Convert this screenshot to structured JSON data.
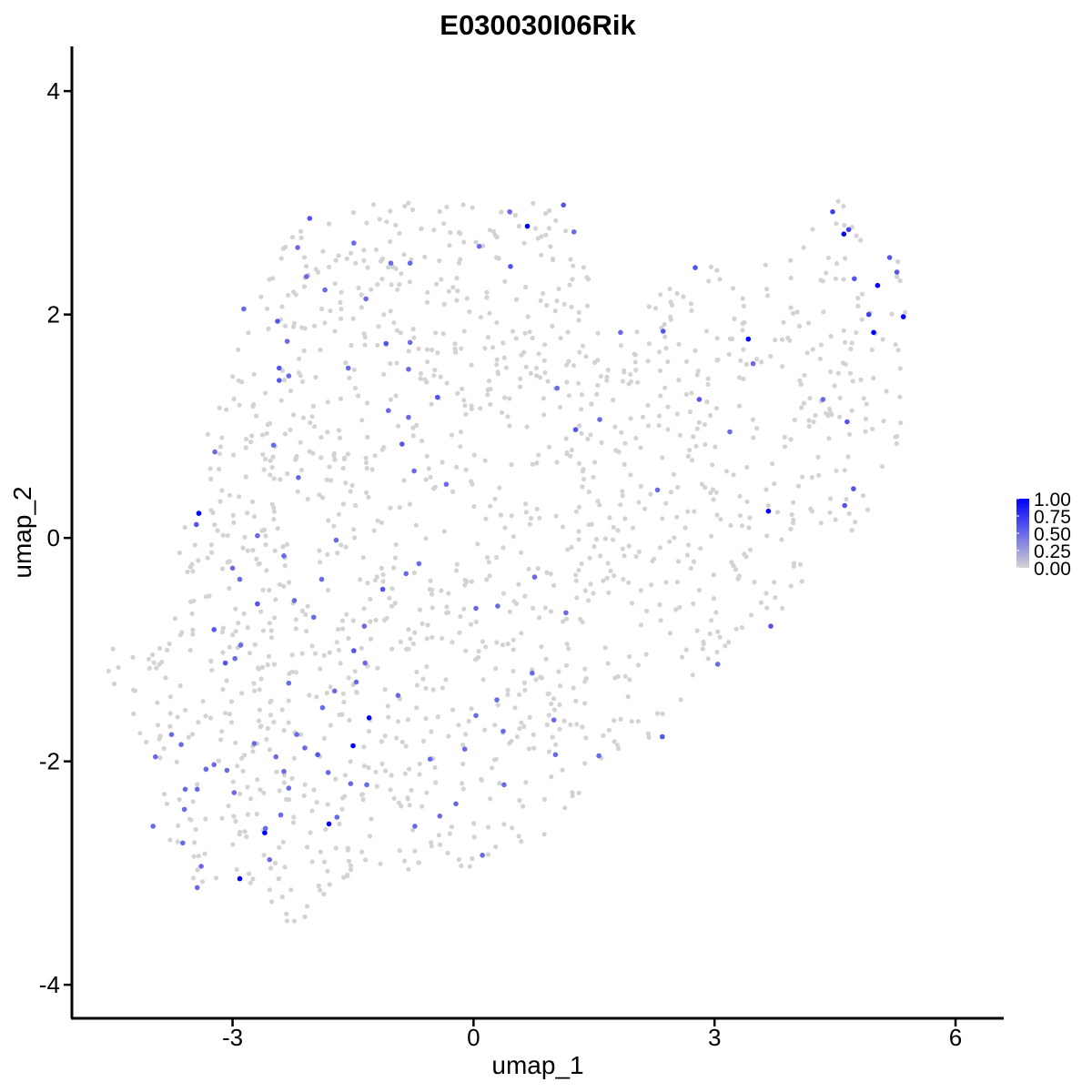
{
  "chart_data": {
    "type": "scatter",
    "title": "E030030I06Rik",
    "xlabel": "umap_1",
    "ylabel": "umap_2",
    "xlim": [
      -5.0,
      6.6
    ],
    "ylim": [
      -4.3,
      4.4
    ],
    "x_ticks": [
      -3,
      0,
      3,
      6
    ],
    "x_tick_labels": [
      "-3",
      "0",
      "3",
      "6"
    ],
    "y_ticks": [
      -4,
      -2,
      0,
      2,
      4
    ],
    "y_tick_labels": [
      "-4",
      "-2",
      "0",
      "2",
      "4"
    ],
    "grid": false,
    "legend": {
      "placement": "right",
      "type": "colorbar",
      "values": [
        1.0,
        0.75,
        0.5,
        0.25,
        0.0
      ],
      "labels": [
        "1.00",
        "0.75",
        "0.50",
        "0.25",
        "0.00"
      ],
      "low_color": "#d3d3d3",
      "high_color": "#0000ff"
    },
    "background_point_color": "#d3d3d3",
    "background_cell_count": 1500,
    "expressing_points": [
      {
        "x": 4.61,
        "y": 2.72,
        "v": 1.0
      },
      {
        "x": 5.03,
        "y": 2.26,
        "v": 1.0
      },
      {
        "x": 5.35,
        "y": 1.98,
        "v": 1.0
      },
      {
        "x": 4.98,
        "y": 1.84,
        "v": 1.0
      },
      {
        "x": 3.42,
        "y": 1.78,
        "v": 1.0
      },
      {
        "x": 0.67,
        "y": 2.79,
        "v": 1.0
      },
      {
        "x": 3.67,
        "y": 0.24,
        "v": 1.0
      },
      {
        "x": -3.42,
        "y": 0.22,
        "v": 1.0
      },
      {
        "x": -1.3,
        "y": -1.61,
        "v": 1.0
      },
      {
        "x": -1.5,
        "y": -1.86,
        "v": 1.0
      },
      {
        "x": -1.8,
        "y": -2.56,
        "v": 1.0
      },
      {
        "x": -2.6,
        "y": -2.64,
        "v": 1.0
      },
      {
        "x": -2.91,
        "y": -3.05,
        "v": 1.0
      },
      {
        "x": 4.47,
        "y": 2.92,
        "v": 0.7
      },
      {
        "x": 4.67,
        "y": 2.76,
        "v": 0.7
      },
      {
        "x": 5.18,
        "y": 2.51,
        "v": 0.6
      },
      {
        "x": 5.27,
        "y": 2.38,
        "v": 0.6
      },
      {
        "x": 4.92,
        "y": 2.0,
        "v": 0.7
      },
      {
        "x": 4.74,
        "y": 2.32,
        "v": 0.6
      },
      {
        "x": 4.65,
        "y": 1.04,
        "v": 0.6
      },
      {
        "x": 4.73,
        "y": 0.44,
        "v": 0.6
      },
      {
        "x": 4.35,
        "y": 1.24,
        "v": 0.5
      },
      {
        "x": 4.62,
        "y": 0.29,
        "v": 0.6
      },
      {
        "x": 2.76,
        "y": 2.42,
        "v": 0.6
      },
      {
        "x": 2.36,
        "y": 1.85,
        "v": 0.6
      },
      {
        "x": 1.83,
        "y": 1.84,
        "v": 0.5
      },
      {
        "x": 1.57,
        "y": 1.06,
        "v": 0.5
      },
      {
        "x": 2.81,
        "y": 1.24,
        "v": 0.6
      },
      {
        "x": 3.19,
        "y": 0.95,
        "v": 0.5
      },
      {
        "x": 3.48,
        "y": 1.56,
        "v": 0.5
      },
      {
        "x": 2.29,
        "y": 0.43,
        "v": 0.5
      },
      {
        "x": 3.7,
        "y": -0.79,
        "v": 0.6
      },
      {
        "x": 3.04,
        "y": -1.13,
        "v": 0.5
      },
      {
        "x": 2.35,
        "y": -1.78,
        "v": 0.6
      },
      {
        "x": 1.12,
        "y": 2.98,
        "v": 0.6
      },
      {
        "x": 1.25,
        "y": 2.74,
        "v": 0.5
      },
      {
        "x": 0.45,
        "y": 2.92,
        "v": 0.5
      },
      {
        "x": 0.46,
        "y": 2.43,
        "v": 0.6
      },
      {
        "x": 0.07,
        "y": 2.61,
        "v": 0.5
      },
      {
        "x": -0.79,
        "y": 2.46,
        "v": 0.5
      },
      {
        "x": -1.49,
        "y": 2.64,
        "v": 0.5
      },
      {
        "x": -1.34,
        "y": 2.14,
        "v": 0.5
      },
      {
        "x": -1.03,
        "y": 2.46,
        "v": 0.5
      },
      {
        "x": -2.08,
        "y": 2.34,
        "v": 0.5
      },
      {
        "x": -2.19,
        "y": 2.6,
        "v": 0.5
      },
      {
        "x": -2.04,
        "y": 2.86,
        "v": 0.6
      },
      {
        "x": -1.85,
        "y": 2.22,
        "v": 0.5
      },
      {
        "x": -2.86,
        "y": 2.05,
        "v": 0.5
      },
      {
        "x": -2.44,
        "y": 1.94,
        "v": 0.6
      },
      {
        "x": -2.32,
        "y": 1.76,
        "v": 0.5
      },
      {
        "x": -2.42,
        "y": 1.52,
        "v": 0.6
      },
      {
        "x": -2.3,
        "y": 1.45,
        "v": 0.5
      },
      {
        "x": -2.42,
        "y": 1.41,
        "v": 0.6
      },
      {
        "x": -1.56,
        "y": 1.52,
        "v": 0.5
      },
      {
        "x": -1.09,
        "y": 1.74,
        "v": 0.6
      },
      {
        "x": -0.79,
        "y": 1.75,
        "v": 0.5
      },
      {
        "x": -0.45,
        "y": 1.26,
        "v": 0.6
      },
      {
        "x": -0.81,
        "y": 1.51,
        "v": 0.5
      },
      {
        "x": -0.81,
        "y": 1.08,
        "v": 0.5
      },
      {
        "x": -0.89,
        "y": 0.84,
        "v": 0.6
      },
      {
        "x": -1.06,
        "y": 1.14,
        "v": 0.5
      },
      {
        "x": -0.74,
        "y": 0.6,
        "v": 0.5
      },
      {
        "x": -0.34,
        "y": 0.48,
        "v": 0.5
      },
      {
        "x": 1.04,
        "y": 1.34,
        "v": 0.5
      },
      {
        "x": 1.27,
        "y": 0.97,
        "v": 0.6
      },
      {
        "x": -2.49,
        "y": 0.83,
        "v": 0.5
      },
      {
        "x": -2.18,
        "y": 0.54,
        "v": 0.5
      },
      {
        "x": -3.22,
        "y": 0.77,
        "v": 0.5
      },
      {
        "x": -3.45,
        "y": 0.12,
        "v": 0.6
      },
      {
        "x": -2.69,
        "y": 0.02,
        "v": 0.5
      },
      {
        "x": -2.36,
        "y": -0.16,
        "v": 0.5
      },
      {
        "x": -3.0,
        "y": -0.27,
        "v": 0.5
      },
      {
        "x": -2.91,
        "y": -0.37,
        "v": 0.5
      },
      {
        "x": -2.69,
        "y": -0.59,
        "v": 0.6
      },
      {
        "x": -3.23,
        "y": -0.82,
        "v": 0.6
      },
      {
        "x": -2.9,
        "y": -0.96,
        "v": 0.5
      },
      {
        "x": -3.09,
        "y": -1.12,
        "v": 0.6
      },
      {
        "x": -2.97,
        "y": -1.08,
        "v": 0.5
      },
      {
        "x": -1.71,
        "y": -0.02,
        "v": 0.5
      },
      {
        "x": -1.89,
        "y": -0.37,
        "v": 0.5
      },
      {
        "x": -2.23,
        "y": -0.56,
        "v": 0.5
      },
      {
        "x": -1.99,
        "y": -0.71,
        "v": 0.5
      },
      {
        "x": -1.49,
        "y": -1.01,
        "v": 0.6
      },
      {
        "x": -1.35,
        "y": -1.12,
        "v": 0.5
      },
      {
        "x": -1.46,
        "y": -1.29,
        "v": 0.5
      },
      {
        "x": -1.73,
        "y": -1.37,
        "v": 0.5
      },
      {
        "x": -1.36,
        "y": -0.79,
        "v": 0.5
      },
      {
        "x": -2.3,
        "y": -1.3,
        "v": 0.5
      },
      {
        "x": -1.13,
        "y": -0.46,
        "v": 0.6
      },
      {
        "x": -0.68,
        "y": -0.23,
        "v": 0.5
      },
      {
        "x": -0.84,
        "y": -0.32,
        "v": 0.5
      },
      {
        "x": 0.03,
        "y": -0.63,
        "v": 0.5
      },
      {
        "x": 0.3,
        "y": -0.61,
        "v": 0.5
      },
      {
        "x": 0.76,
        "y": -0.35,
        "v": 0.5
      },
      {
        "x": 1.15,
        "y": -0.67,
        "v": 0.5
      },
      {
        "x": 0.73,
        "y": -1.21,
        "v": 0.5
      },
      {
        "x": 0.29,
        "y": -1.45,
        "v": 0.5
      },
      {
        "x": 0.03,
        "y": -1.59,
        "v": 0.5
      },
      {
        "x": 0.37,
        "y": -1.73,
        "v": 0.5
      },
      {
        "x": 1.0,
        "y": -1.63,
        "v": 0.5
      },
      {
        "x": 1.02,
        "y": -1.94,
        "v": 0.5
      },
      {
        "x": 1.56,
        "y": -1.95,
        "v": 0.5
      },
      {
        "x": -0.11,
        "y": -1.89,
        "v": 0.5
      },
      {
        "x": 0.38,
        "y": -2.21,
        "v": 0.5
      },
      {
        "x": 0.11,
        "y": -2.84,
        "v": 0.5
      },
      {
        "x": -0.22,
        "y": -2.38,
        "v": 0.5
      },
      {
        "x": -0.42,
        "y": -2.49,
        "v": 0.5
      },
      {
        "x": -0.73,
        "y": -2.58,
        "v": 0.5
      },
      {
        "x": -0.54,
        "y": -1.98,
        "v": 0.5
      },
      {
        "x": -1.33,
        "y": -2.21,
        "v": 0.5
      },
      {
        "x": -1.53,
        "y": -2.2,
        "v": 0.5
      },
      {
        "x": -1.94,
        "y": -1.94,
        "v": 0.6
      },
      {
        "x": -2.1,
        "y": -1.88,
        "v": 0.5
      },
      {
        "x": -2.2,
        "y": -1.76,
        "v": 0.5
      },
      {
        "x": -2.46,
        "y": -1.96,
        "v": 0.5
      },
      {
        "x": -2.73,
        "y": -1.84,
        "v": 0.5
      },
      {
        "x": -2.36,
        "y": -2.09,
        "v": 0.5
      },
      {
        "x": -2.3,
        "y": -2.24,
        "v": 0.5
      },
      {
        "x": -2.4,
        "y": -2.48,
        "v": 0.5
      },
      {
        "x": -2.59,
        "y": -2.6,
        "v": 0.5
      },
      {
        "x": -2.54,
        "y": -2.88,
        "v": 0.5
      },
      {
        "x": -2.98,
        "y": -2.28,
        "v": 0.5
      },
      {
        "x": -3.07,
        "y": -2.08,
        "v": 0.5
      },
      {
        "x": -3.23,
        "y": -2.03,
        "v": 0.5
      },
      {
        "x": -3.33,
        "y": -2.07,
        "v": 0.5
      },
      {
        "x": -3.44,
        "y": -2.25,
        "v": 0.5
      },
      {
        "x": -3.59,
        "y": -2.25,
        "v": 0.5
      },
      {
        "x": -3.64,
        "y": -1.85,
        "v": 0.5
      },
      {
        "x": -3.76,
        "y": -1.76,
        "v": 0.5
      },
      {
        "x": -3.96,
        "y": -1.96,
        "v": 0.5
      },
      {
        "x": -3.6,
        "y": -2.43,
        "v": 0.5
      },
      {
        "x": -3.99,
        "y": -2.58,
        "v": 0.5
      },
      {
        "x": -3.62,
        "y": -2.73,
        "v": 0.5
      },
      {
        "x": -3.39,
        "y": -2.94,
        "v": 0.5
      },
      {
        "x": -3.44,
        "y": -3.13,
        "v": 0.5
      },
      {
        "x": -1.88,
        "y": -1.52,
        "v": 0.5
      },
      {
        "x": -0.94,
        "y": -1.41,
        "v": 0.5
      },
      {
        "x": -1.7,
        "y": -2.5,
        "v": 0.5
      },
      {
        "x": -1.81,
        "y": -2.1,
        "v": 0.5
      }
    ]
  }
}
